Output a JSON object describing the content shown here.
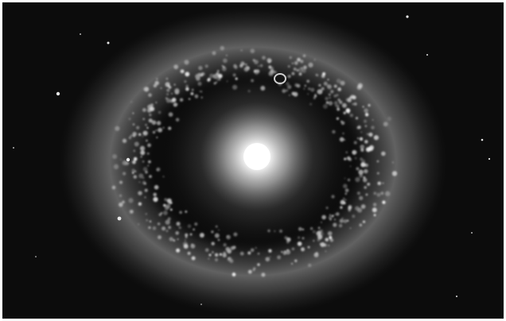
{
  "image": {
    "subject": "ring-galaxy-photograph",
    "palette": {
      "background": "#0c0c0c",
      "ring": "#8a8a8a",
      "core": "#ffffff",
      "border": "#ffffff"
    }
  }
}
